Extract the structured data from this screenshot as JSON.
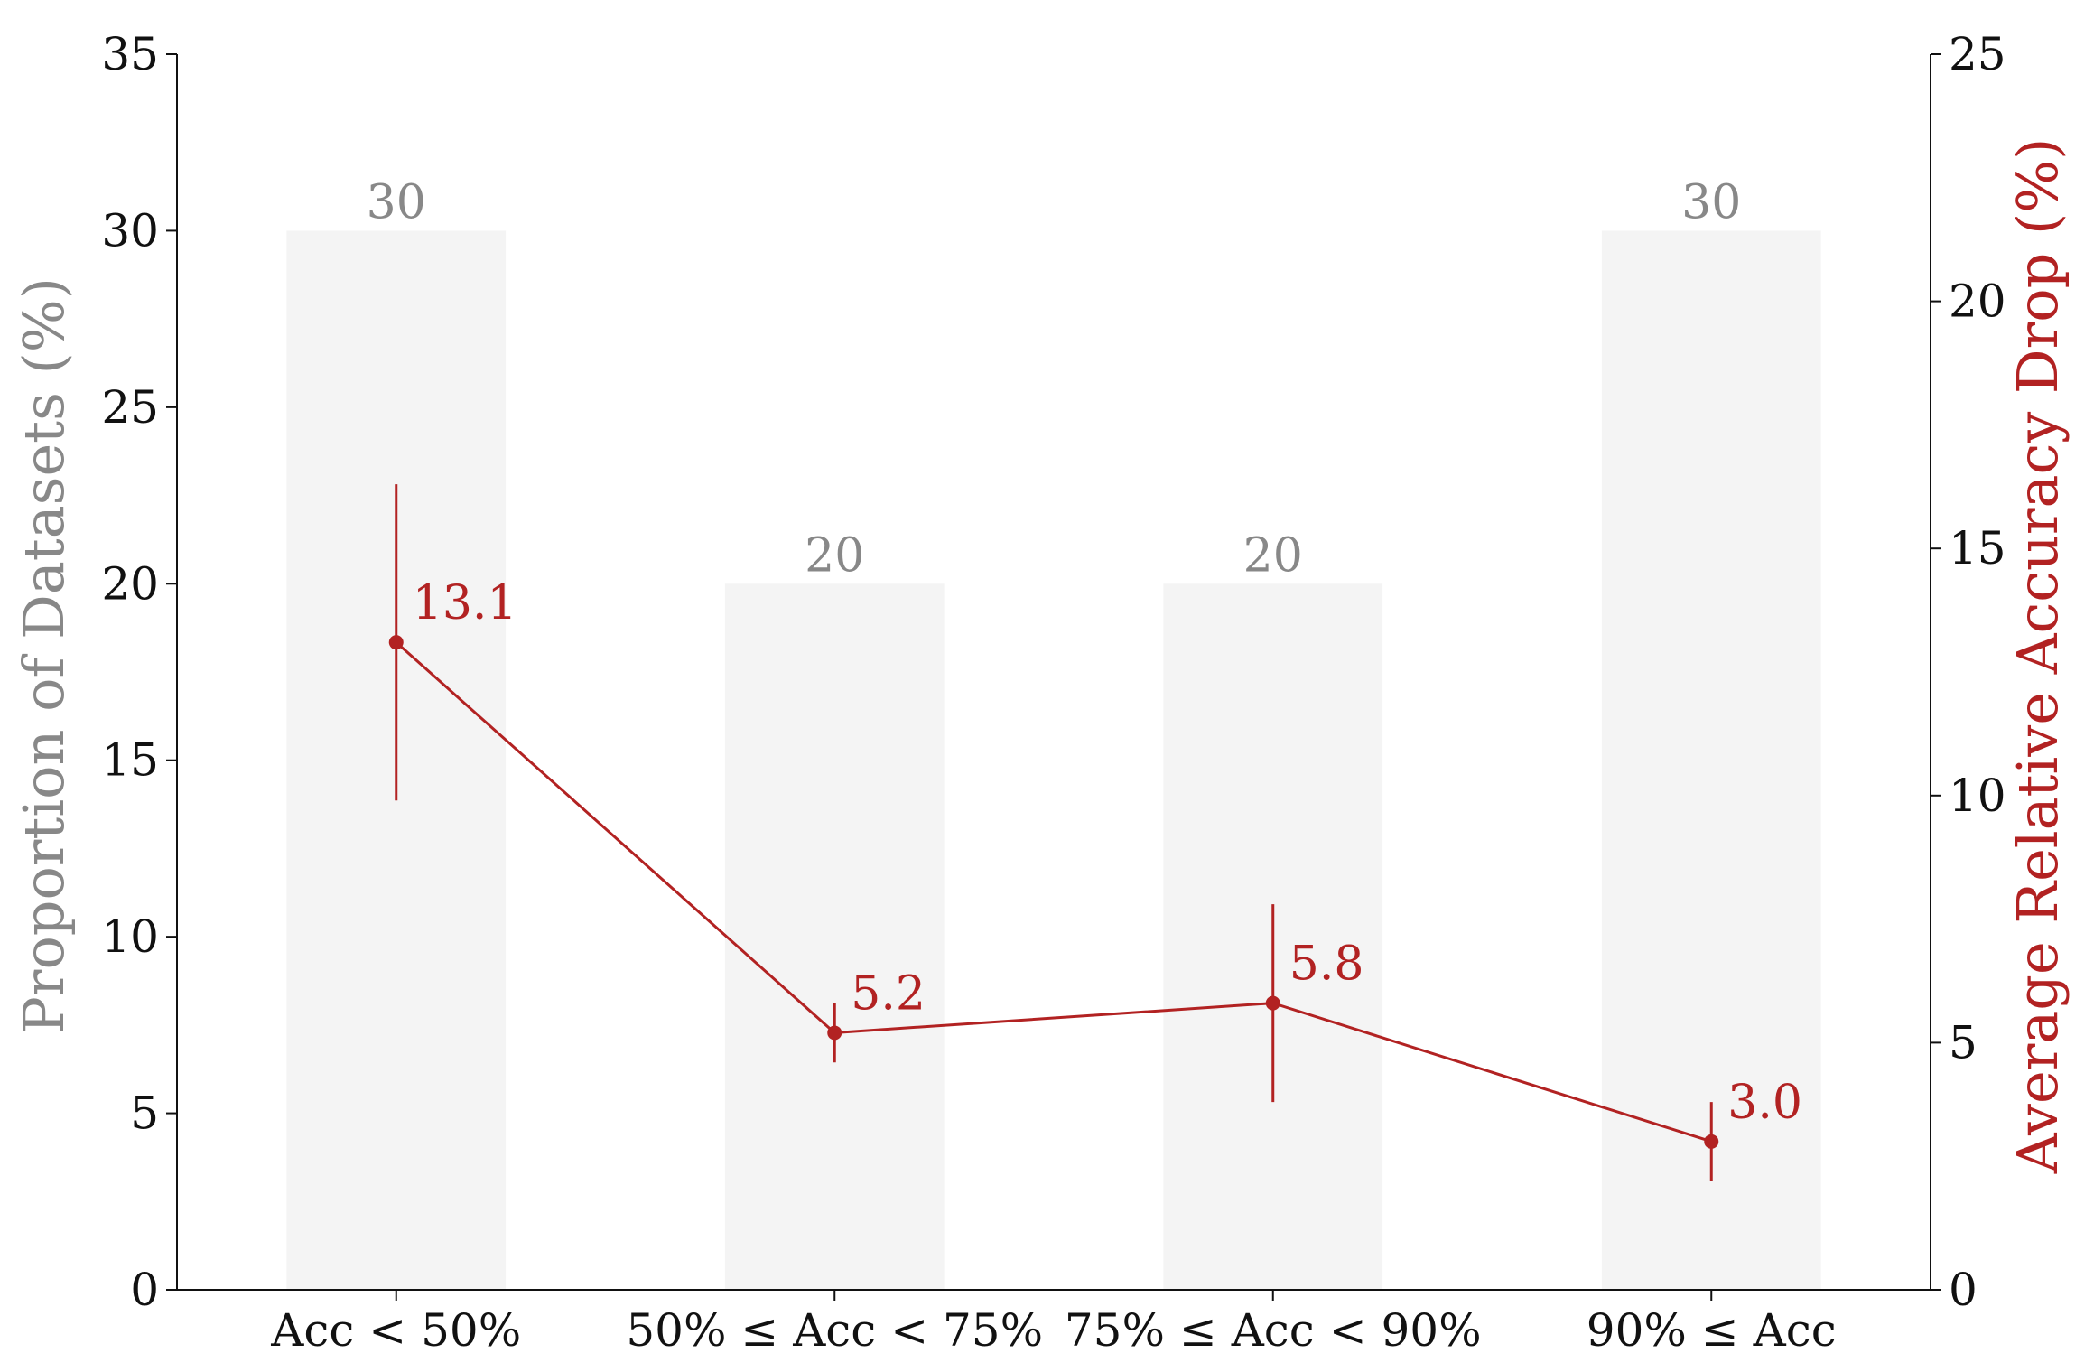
{
  "chart_data": {
    "type": "bar",
    "categories": [
      "Acc < 50%",
      "50% ≤ Acc < 75%",
      "75% ≤ Acc < 90%",
      "90% ≤ Acc"
    ],
    "bar_series": {
      "values": [
        30,
        20,
        20,
        30
      ],
      "data_labels": [
        "30",
        "20",
        "20",
        "30"
      ],
      "color": "#f4f4f4",
      "label_color": "#888888"
    },
    "line_series": {
      "values": [
        13.1,
        5.2,
        5.8,
        3.0
      ],
      "data_labels": [
        "13.1",
        "5.2",
        "5.8",
        "3.0"
      ],
      "error_low": [
        9.9,
        4.6,
        3.8,
        2.2
      ],
      "error_high": [
        16.3,
        5.8,
        7.8,
        3.8
      ],
      "color": "#b22222"
    },
    "ylabel_left": "Proportion of Datasets (%)",
    "ylabel_left_color": "#888888",
    "ylabel_right": "Average Relative Accuracy Drop (%)",
    "ylabel_right_color": "#b22222",
    "ylim_left": [
      0,
      35
    ],
    "yticks_left": [
      "0",
      "5",
      "10",
      "15",
      "20",
      "25",
      "30",
      "35"
    ],
    "ylim_right": [
      0,
      25
    ],
    "yticks_right": [
      "0",
      "5",
      "10",
      "15",
      "20",
      "25"
    ],
    "grid": false
  }
}
